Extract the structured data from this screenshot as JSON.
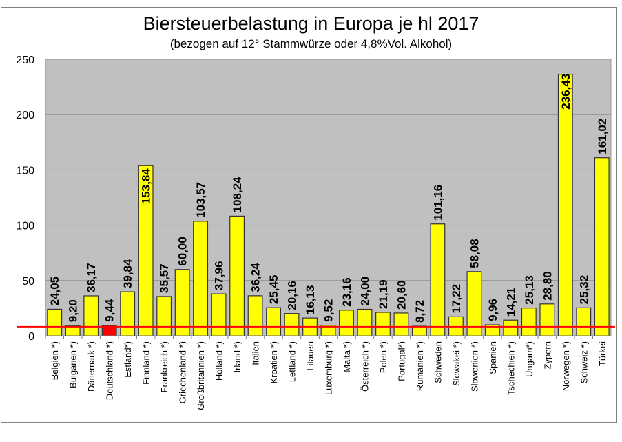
{
  "chart_data": {
    "type": "bar",
    "title": "Biersteuerbelastung in Europa je hl 2017",
    "subtitle": "(bezogen auf 12° Stammwürze oder 4,8%Vol. Alkohol)",
    "xlabel": "",
    "ylabel": "",
    "ylim": [
      0,
      250
    ],
    "yticks": [
      0,
      50,
      100,
      150,
      200,
      250
    ],
    "grid": true,
    "legend": "none",
    "plot_background": "#c0c0c0",
    "bar_color": "#ffff00",
    "highlight_color": "#ff0000",
    "reference_line": {
      "value": 9.44,
      "color": "#ff0000",
      "description": "Deutschland level"
    },
    "categories": [
      "Belgien *)",
      "Bulgarien *)",
      "Dänemark *)",
      "Deutschland *)",
      "Estland*)",
      "Finnland *)",
      "Frankreich *)",
      "Griechenland *)",
      "Großbritannien *)",
      "Holland *)",
      "Irland *)",
      "Italien",
      "Kroatien *)",
      "Lettland *)",
      "Litauen",
      "Luxemburg *)",
      "Malta *)",
      "Österreich *)",
      "Polen *)",
      "Portugal*)",
      "Rumänien *)",
      "Schweden",
      "Slowakei *)",
      "Slowenien *)",
      "Spanien",
      "Tschechien *)",
      "Ungarn*)",
      "Zypern",
      "Norwegen *)",
      "Schweiz *)",
      "Türkei"
    ],
    "values": [
      24.05,
      9.2,
      36.17,
      9.44,
      39.84,
      153.84,
      35.57,
      60.0,
      103.57,
      37.96,
      108.24,
      36.24,
      25.45,
      20.16,
      16.13,
      9.52,
      23.16,
      24.0,
      21.19,
      20.6,
      8.72,
      101.16,
      17.22,
      58.08,
      9.96,
      14.21,
      25.13,
      28.8,
      236.43,
      25.32,
      161.02
    ],
    "value_labels": [
      "24,05",
      "9,20",
      "36,17",
      "9,44",
      "39,84",
      "153,84",
      "35,57",
      "60,00",
      "103,57",
      "37,96",
      "108,24",
      "36,24",
      "25,45",
      "20,16",
      "16,13",
      "9,52",
      "23,16",
      "24,00",
      "21,19",
      "20,60",
      "8,72",
      "101,16",
      "17,22",
      "58,08",
      "9,96",
      "14,21",
      "25,13",
      "28,80",
      "236,43",
      "25,32",
      "161,02"
    ],
    "highlighted_index": 3
  }
}
